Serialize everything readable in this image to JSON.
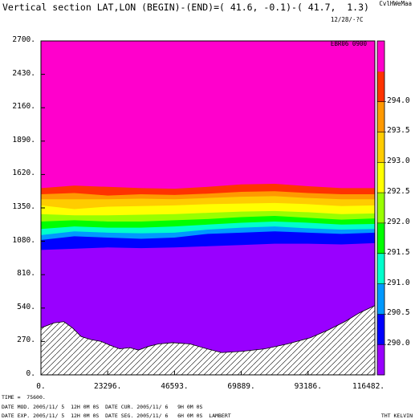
{
  "header": {
    "title": "Vertical section LAT,LON (BEGIN)-(END)=( 41.6, -0.1)-( 41.7,  1.3)",
    "date_line1": "12/28/·?C",
    "date_line2": "EBR06 0900",
    "model_label": "CvlHWeMaa"
  },
  "chart_data": {
    "type": "heatmap",
    "title": "Vertical section LAT,LON (BEGIN)-(END)=( 41.6, -0.1)-( 41.7,  1.3)",
    "xlabel": "",
    "ylabel": "",
    "xlim": [
      0,
      116482
    ],
    "ylim": [
      0,
      2700
    ],
    "x_ticks": [
      "0.",
      "23296.",
      "46593.",
      "69889.",
      "93186.",
      "116482."
    ],
    "y_ticks": [
      "0.",
      "270.",
      "540.",
      "810.",
      "1080.",
      "1350.",
      "1620.",
      "1890.",
      "2160.",
      "2430.",
      "2700."
    ],
    "colorbar": {
      "levels": [
        "290.0",
        "290.5",
        "291.0",
        "291.5",
        "292.0",
        "292.5",
        "293.0",
        "293.5",
        "294.0"
      ],
      "colors": [
        "#9900ff",
        "#0000ff",
        "#0099ff",
        "#00ffcc",
        "#00ff00",
        "#99ff00",
        "#ffff00",
        "#ffcc00",
        "#ff9900",
        "#ff3300",
        "#ff00cc"
      ]
    },
    "bands": [
      {
        "color": "#0000ff",
        "top": [
          1090,
          1120,
          1110,
          1100,
          1110,
          1140,
          1150,
          1160,
          1150,
          1140,
          1150
        ]
      },
      {
        "color": "#0099ff",
        "top": [
          1130,
          1160,
          1150,
          1145,
          1150,
          1175,
          1190,
          1200,
          1185,
          1175,
          1180
        ]
      },
      {
        "color": "#00ffcc",
        "top": [
          1180,
          1200,
          1190,
          1190,
          1200,
          1215,
          1230,
          1240,
          1230,
          1215,
          1220
        ]
      },
      {
        "color": "#00ff00",
        "top": [
          1240,
          1250,
          1240,
          1240,
          1250,
          1260,
          1275,
          1285,
          1270,
          1255,
          1265
        ]
      },
      {
        "color": "#99ff00",
        "top": [
          1300,
          1290,
          1290,
          1295,
          1300,
          1310,
          1320,
          1325,
          1315,
          1300,
          1305
        ]
      },
      {
        "color": "#ffff00",
        "top": [
          1370,
          1340,
          1360,
          1365,
          1370,
          1380,
          1385,
          1390,
          1380,
          1365,
          1370
        ]
      },
      {
        "color": "#ffcc00",
        "top": [
          1420,
          1420,
          1420,
          1425,
          1420,
          1430,
          1440,
          1445,
          1430,
          1420,
          1420
        ]
      },
      {
        "color": "#ff9900",
        "top": [
          1460,
          1470,
          1450,
          1460,
          1455,
          1465,
          1480,
          1485,
          1470,
          1460,
          1460
        ]
      },
      {
        "color": "#ff3300",
        "top": [
          1510,
          1530,
          1520,
          1510,
          1505,
          1520,
          1540,
          1545,
          1525,
          1510,
          1510
        ]
      }
    ],
    "band_x": [
      0,
      11648,
      23296,
      34945,
      46593,
      58241,
      69889,
      81537,
      93186,
      104834,
      116482
    ],
    "terrain": {
      "x": [
        0,
        4600,
        8000,
        11000,
        14000,
        17500,
        21000,
        24000,
        27500,
        31000,
        34000,
        37500,
        41000,
        46000,
        52000,
        58000,
        63000,
        70000,
        78000,
        86000,
        94000,
        100000,
        106000,
        111000,
        116482
      ],
      "y": [
        380,
        420,
        430,
        380,
        310,
        285,
        270,
        240,
        210,
        220,
        200,
        230,
        250,
        260,
        250,
        210,
        180,
        190,
        210,
        250,
        300,
        360,
        430,
        500,
        560
      ]
    }
  },
  "footer": {
    "time_line": "TIME =  75600.",
    "mod_line": "DATE MOD. 2005/11/ 5  12H 0M 0S  DATE CUR. 2005/11/ 6   9H 0M 0S",
    "exp_line": "DATE EXP. 2005/11/ 5  12H 0M 0S  DATE SEG. 2005/11/ 6   6H 0M 0S  LAMBERT",
    "variable": "THT KELVIN"
  }
}
